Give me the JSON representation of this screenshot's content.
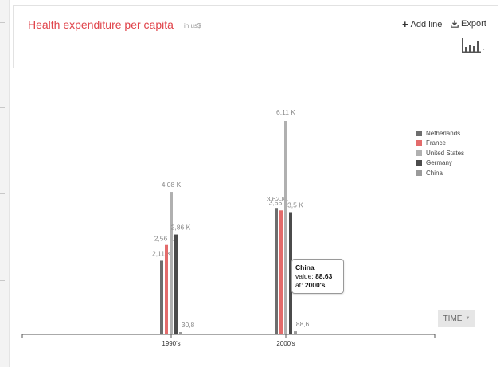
{
  "header": {
    "title": "Health expenditure per capita",
    "unit": "in us$"
  },
  "toolbar": {
    "add_line_label": "Add line",
    "export_label": "Export",
    "chart_type_icon": "bar-chart-icon"
  },
  "time_button": {
    "label": "TIME"
  },
  "tooltip": {
    "series": "China",
    "value_label": "value:",
    "value": "88.63",
    "at_label": "at:",
    "at": "2000's"
  },
  "colors": {
    "Netherlands": "#6d6d6d",
    "France": "#e36b6b",
    "United States": "#b0b0b0",
    "Germany": "#4b4b4b",
    "China": "#9a9a9a",
    "title": "#e0434a"
  },
  "chart_data": {
    "type": "bar",
    "title": "Health expenditure per capita",
    "subtitle": "in us$",
    "categories": [
      "1990's",
      "2000's"
    ],
    "series": [
      {
        "name": "Netherlands",
        "values": [
          2110,
          3620
        ],
        "labels": [
          "2,11 K",
          "3,62 K"
        ]
      },
      {
        "name": "France",
        "values": [
          2560,
          3550
        ],
        "labels": [
          "2,56 K",
          "3,55 K"
        ]
      },
      {
        "name": "United States",
        "values": [
          4080,
          6110
        ],
        "labels": [
          "4,08 K",
          "6,11 K"
        ]
      },
      {
        "name": "Germany",
        "values": [
          2860,
          3500
        ],
        "labels": [
          "2,86 K",
          "3,5 K"
        ]
      },
      {
        "name": "China",
        "values": [
          30.8,
          88.6
        ],
        "labels": [
          "30,8",
          "88,6"
        ]
      }
    ],
    "ylim": [
      0,
      6110
    ],
    "legend_position": "right",
    "grid": false
  }
}
